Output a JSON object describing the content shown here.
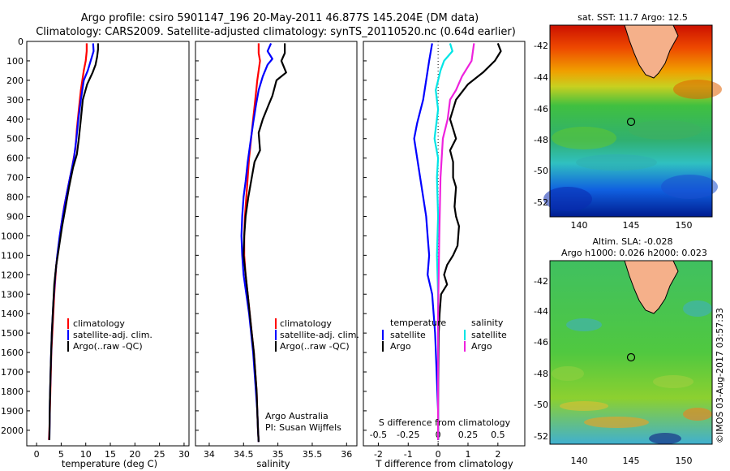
{
  "header": {
    "line1": "Argo profile: csiro 5901147_196 20-May-2011 46.877S 145.204E (DM data)",
    "line2": "Climatology: CARS2009. Satellite-adjusted climatology: synTS_20110520.nc (0.64d earlier)"
  },
  "colors": {
    "climatology": "#ff0000",
    "satellite": "#0000ff",
    "argo": "#000000",
    "sat_salinity": "#00e5e5",
    "argo_salinity": "#ee22dd"
  },
  "chart_data": [
    {
      "type": "line",
      "xlabel": "temperature (deg C)",
      "ylabel": "",
      "xlim": [
        -2,
        31
      ],
      "ylim": [
        2080,
        0
      ],
      "xticks": [
        0,
        5,
        10,
        15,
        20,
        25,
        30
      ],
      "yticks": [
        0,
        100,
        200,
        300,
        400,
        500,
        600,
        700,
        800,
        900,
        1000,
        1100,
        1200,
        1300,
        1400,
        1500,
        1600,
        1700,
        1800,
        1900,
        2000
      ],
      "legend": [
        "climatology",
        "satellite-adj. clim.",
        "Argo(..raw -QC)"
      ],
      "series": [
        {
          "name": "climatology",
          "color": "#ff0000",
          "points": [
            [
              10.2,
              10
            ],
            [
              10.2,
              50
            ],
            [
              10.0,
              100
            ],
            [
              9.6,
              150
            ],
            [
              9.0,
              250
            ],
            [
              8.6,
              350
            ],
            [
              8.2,
              450
            ],
            [
              7.9,
              550
            ],
            [
              7.2,
              650
            ],
            [
              6.4,
              750
            ],
            [
              5.6,
              850
            ],
            [
              5.0,
              950
            ],
            [
              4.5,
              1050
            ],
            [
              4.0,
              1150
            ],
            [
              3.6,
              1300
            ],
            [
              3.3,
              1450
            ],
            [
              3.0,
              1600
            ],
            [
              2.8,
              1800
            ],
            [
              2.6,
              2000
            ],
            [
              2.5,
              2050
            ]
          ]
        },
        {
          "name": "satellite-adj. clim.",
          "color": "#0000ff",
          "points": [
            [
              11.5,
              10
            ],
            [
              11.6,
              50
            ],
            [
              11.0,
              100
            ],
            [
              10.4,
              150
            ],
            [
              9.6,
              200
            ],
            [
              9.0,
              300
            ],
            [
              8.5,
              400
            ],
            [
              8.1,
              500
            ],
            [
              7.6,
              600
            ],
            [
              6.8,
              700
            ],
            [
              6.0,
              800
            ],
            [
              5.3,
              900
            ],
            [
              4.7,
              1000
            ],
            [
              4.2,
              1100
            ],
            [
              3.8,
              1200
            ],
            [
              3.4,
              1350
            ],
            [
              3.1,
              1500
            ],
            [
              2.9,
              1650
            ],
            [
              2.7,
              1850
            ],
            [
              2.6,
              2050
            ]
          ]
        },
        {
          "name": "Argo(..raw -QC)",
          "color": "#000000",
          "points": [
            [
              12.5,
              10
            ],
            [
              12.5,
              40
            ],
            [
              12.3,
              80
            ],
            [
              12.0,
              120
            ],
            [
              11.4,
              160
            ],
            [
              10.3,
              220
            ],
            [
              9.4,
              300
            ],
            [
              9.0,
              400
            ],
            [
              8.6,
              500
            ],
            [
              8.2,
              580
            ],
            [
              7.4,
              650
            ],
            [
              6.6,
              750
            ],
            [
              5.9,
              850
            ],
            [
              5.2,
              950
            ],
            [
              4.6,
              1050
            ],
            [
              4.0,
              1150
            ],
            [
              3.6,
              1250
            ],
            [
              3.4,
              1350
            ],
            [
              3.1,
              1500
            ],
            [
              2.9,
              1650
            ],
            [
              2.7,
              1850
            ],
            [
              2.6,
              2050
            ]
          ]
        }
      ]
    },
    {
      "type": "line",
      "xlabel": "salinity",
      "xlim": [
        33.8,
        36.15
      ],
      "ylim": [
        2080,
        0
      ],
      "xticks": [
        34,
        34.5,
        35,
        35.5,
        36
      ],
      "xtick_labels": [
        "34",
        "34.5",
        "35",
        "35.5",
        "36"
      ],
      "legend": [
        "climatology",
        "satellite-adj. clim.",
        "Argo(..raw -QC)"
      ],
      "series": [
        {
          "name": "climatology",
          "color": "#ff0000",
          "points": [
            [
              34.72,
              10
            ],
            [
              34.72,
              60
            ],
            [
              34.74,
              100
            ],
            [
              34.7,
              200
            ],
            [
              34.67,
              300
            ],
            [
              34.64,
              400
            ],
            [
              34.61,
              500
            ],
            [
              34.58,
              600
            ],
            [
              34.56,
              700
            ],
            [
              34.54,
              800
            ],
            [
              34.52,
              900
            ],
            [
              34.51,
              1000
            ],
            [
              34.51,
              1100
            ],
            [
              34.53,
              1200
            ],
            [
              34.56,
              1300
            ],
            [
              34.59,
              1400
            ],
            [
              34.62,
              1500
            ],
            [
              34.65,
              1600
            ],
            [
              34.67,
              1700
            ],
            [
              34.69,
              1800
            ],
            [
              34.7,
              1900
            ],
            [
              34.71,
              2000
            ],
            [
              34.72,
              2060
            ]
          ]
        },
        {
          "name": "satellite-adj. clim.",
          "color": "#0000ff",
          "points": [
            [
              34.9,
              10
            ],
            [
              34.85,
              50
            ],
            [
              34.92,
              90
            ],
            [
              34.85,
              120
            ],
            [
              34.78,
              180
            ],
            [
              34.72,
              250
            ],
            [
              34.68,
              330
            ],
            [
              34.64,
              420
            ],
            [
              34.6,
              520
            ],
            [
              34.56,
              620
            ],
            [
              34.53,
              720
            ],
            [
              34.5,
              800
            ],
            [
              34.48,
              900
            ],
            [
              34.47,
              1000
            ],
            [
              34.48,
              1100
            ],
            [
              34.5,
              1200
            ],
            [
              34.54,
              1300
            ],
            [
              34.58,
              1400
            ],
            [
              34.61,
              1500
            ],
            [
              34.64,
              1600
            ],
            [
              34.66,
              1700
            ],
            [
              34.68,
              1800
            ],
            [
              34.7,
              1900
            ],
            [
              34.71,
              2000
            ],
            [
              34.72,
              2060
            ]
          ]
        },
        {
          "name": "Argo(..raw -QC)",
          "color": "#000000",
          "points": [
            [
              35.1,
              10
            ],
            [
              35.1,
              60
            ],
            [
              35.05,
              100
            ],
            [
              35.12,
              160
            ],
            [
              34.98,
              200
            ],
            [
              34.92,
              280
            ],
            [
              34.86,
              330
            ],
            [
              34.78,
              400
            ],
            [
              34.72,
              470
            ],
            [
              34.74,
              560
            ],
            [
              34.66,
              620
            ],
            [
              34.62,
              700
            ],
            [
              34.57,
              800
            ],
            [
              34.53,
              900
            ],
            [
              34.51,
              1000
            ],
            [
              34.5,
              1100
            ],
            [
              34.53,
              1200
            ],
            [
              34.56,
              1300
            ],
            [
              34.59,
              1400
            ],
            [
              34.62,
              1500
            ],
            [
              34.65,
              1600
            ],
            [
              34.67,
              1700
            ],
            [
              34.69,
              1800
            ],
            [
              34.7,
              1900
            ],
            [
              34.71,
              2000
            ],
            [
              34.72,
              2060
            ]
          ]
        }
      ],
      "annotations": [
        "Argo Australia",
        "PI: Susan Wijffels"
      ]
    },
    {
      "type": "line",
      "xlabel": "T difference from climatology",
      "xlim": [
        -2.5,
        2.9
      ],
      "ylim": [
        2080,
        0
      ],
      "xticks": [
        -2,
        -1,
        0,
        1,
        2
      ],
      "x2label": "S difference from climatology",
      "x2ticks": [
        -0.5,
        -0.25,
        0,
        0.25,
        0.5
      ],
      "x2tick_labels": [
        "-0.5",
        "-0.25",
        "0",
        "0.25",
        "0.5"
      ],
      "x2lim": [
        -0.625,
        0.725
      ],
      "legend_temperature": {
        "heading": "temperature",
        "items": [
          "satellite",
          "Argo"
        ]
      },
      "legend_salinity": {
        "heading": "salinity",
        "items": [
          "satellite",
          "Argo"
        ]
      },
      "series": [
        {
          "name": "temperature satellite",
          "color": "#0000ff",
          "points": [
            [
              -0.2,
              10
            ],
            [
              -0.3,
              100
            ],
            [
              -0.4,
              200
            ],
            [
              -0.5,
              300
            ],
            [
              -0.6,
              360
            ],
            [
              -0.7,
              420
            ],
            [
              -0.8,
              500
            ],
            [
              -0.7,
              600
            ],
            [
              -0.6,
              700
            ],
            [
              -0.5,
              800
            ],
            [
              -0.4,
              900
            ],
            [
              -0.35,
              1000
            ],
            [
              -0.3,
              1100
            ],
            [
              -0.35,
              1200
            ],
            [
              -0.2,
              1300
            ],
            [
              -0.15,
              1400
            ],
            [
              -0.1,
              1500
            ],
            [
              -0.05,
              1700
            ],
            [
              0,
              1900
            ],
            [
              0,
              2050
            ]
          ]
        },
        {
          "name": "temperature Argo",
          "color": "#000000",
          "points": [
            [
              2.0,
              10
            ],
            [
              2.1,
              50
            ],
            [
              1.9,
              100
            ],
            [
              1.5,
              160
            ],
            [
              1.0,
              220
            ],
            [
              0.6,
              300
            ],
            [
              0.4,
              400
            ],
            [
              0.5,
              450
            ],
            [
              0.6,
              500
            ],
            [
              0.4,
              560
            ],
            [
              0.5,
              620
            ],
            [
              0.5,
              700
            ],
            [
              0.6,
              750
            ],
            [
              0.55,
              850
            ],
            [
              0.6,
              900
            ],
            [
              0.7,
              950
            ],
            [
              0.65,
              1050
            ],
            [
              0.5,
              1100
            ],
            [
              0.3,
              1150
            ],
            [
              0.2,
              1200
            ],
            [
              0.3,
              1250
            ],
            [
              0.1,
              1300
            ],
            [
              0.05,
              1400
            ],
            [
              0.02,
              1500
            ],
            [
              0.01,
              1700
            ],
            [
              0,
              1900
            ],
            [
              0,
              2050
            ]
          ]
        },
        {
          "name": "salinity satellite",
          "color": "#00e5e5",
          "points": [
            [
              0.1,
              10
            ],
            [
              0.12,
              50
            ],
            [
              0.05,
              100
            ],
            [
              0.02,
              150
            ],
            [
              -0.02,
              250
            ],
            [
              0,
              350
            ],
            [
              -0.03,
              500
            ],
            [
              0,
              600
            ],
            [
              -0.01,
              700
            ],
            [
              0,
              900
            ],
            [
              -0.01,
              1100
            ],
            [
              0,
              1300
            ],
            [
              0,
              1600
            ],
            [
              0,
              2050
            ]
          ]
        },
        {
          "name": "salinity Argo",
          "color": "#ee22dd",
          "points": [
            [
              0.3,
              10
            ],
            [
              0.28,
              100
            ],
            [
              0.2,
              180
            ],
            [
              0.15,
              250
            ],
            [
              0.1,
              300
            ],
            [
              0.08,
              400
            ],
            [
              0.04,
              500
            ],
            [
              0.02,
              700
            ],
            [
              0.01,
              1000
            ],
            [
              0,
              1400
            ],
            [
              0,
              2050
            ]
          ]
        }
      ]
    }
  ],
  "maps": {
    "sst": {
      "title": "sat. SST: 11.7 Argo: 12.5",
      "xticks": [
        "140",
        "145",
        "150"
      ],
      "yticks": [
        "-42",
        "-44",
        "-46",
        "-48",
        "-50",
        "-52"
      ]
    },
    "sla": {
      "title1": "Altim. SLA: -0.028",
      "title2": "Argo h1000: 0.026 h2000: 0.023",
      "xticks": [
        "140",
        "145",
        "150"
      ],
      "yticks": [
        "-42",
        "-44",
        "-46",
        "-48",
        "-50",
        "-52"
      ]
    }
  },
  "footer": {
    "timestamp": "©IMOS 03-Aug-2017 03:57:33"
  }
}
